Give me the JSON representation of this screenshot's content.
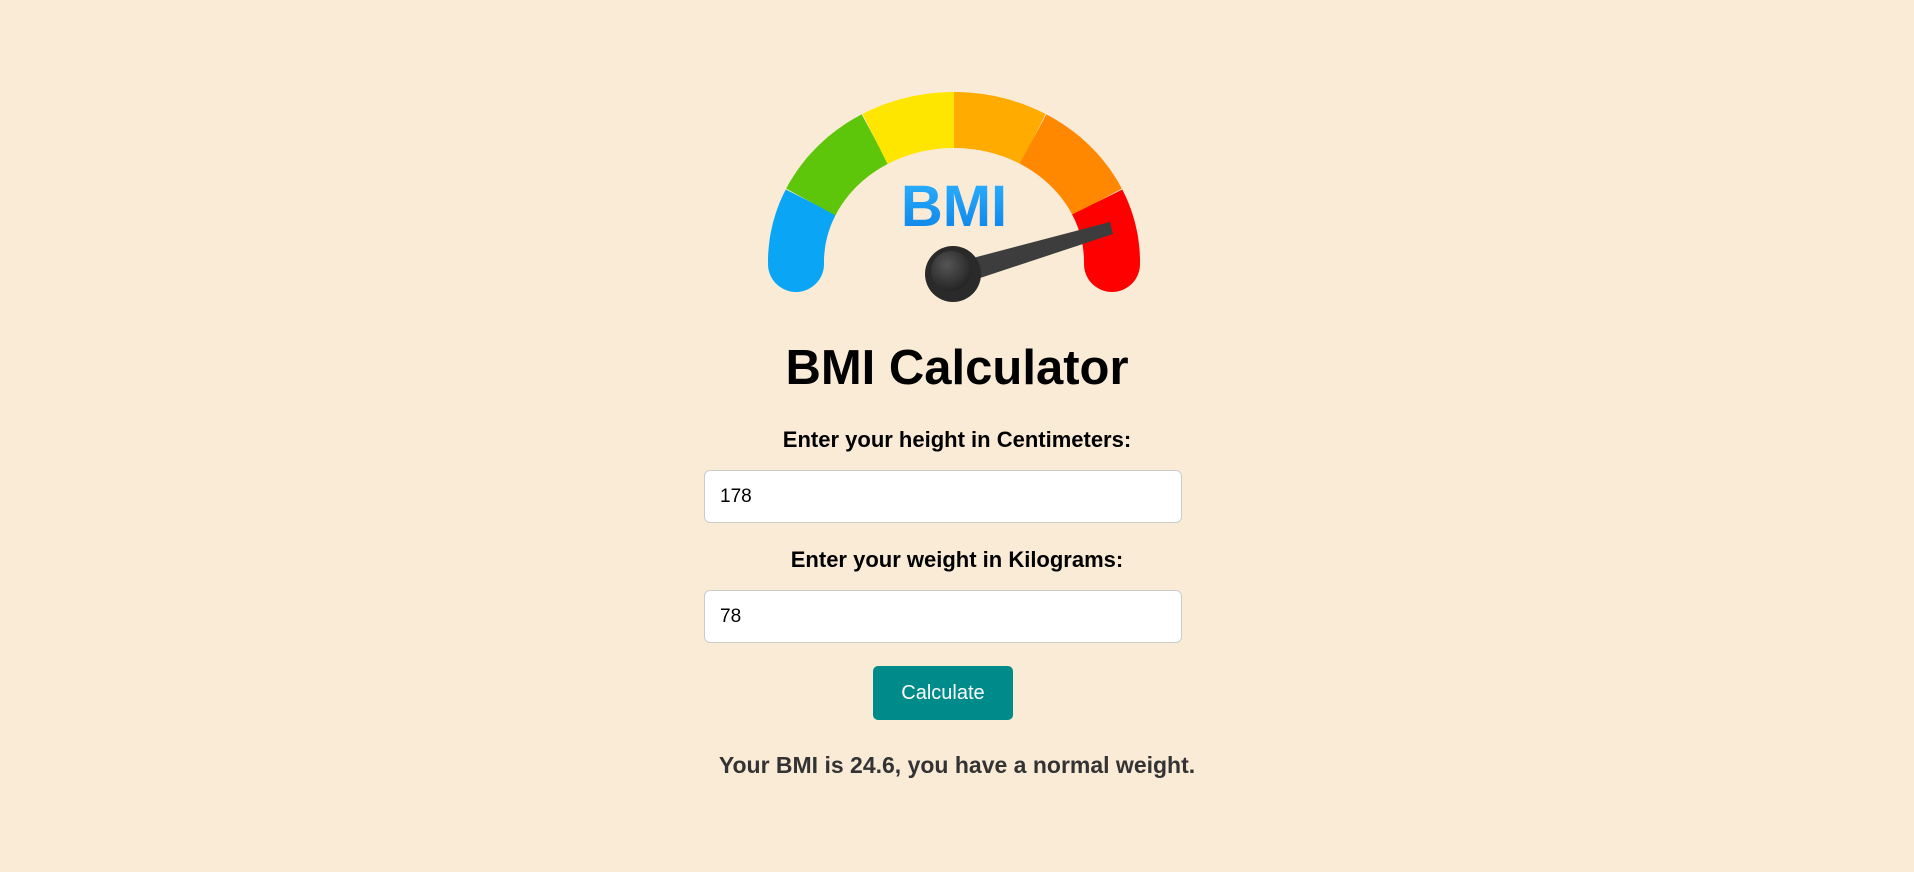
{
  "logo": {
    "text": "BMI",
    "colors": {
      "underweight": "#0aa5f5",
      "normal": "#5ec60a",
      "overweight": "#ffe600",
      "obese1": "#ffab00",
      "obese2": "#ff8800",
      "obese3": "#ff0000",
      "needle": "#3a3a3a",
      "text": "#1e9bf0"
    }
  },
  "title": "BMI Calculator",
  "form": {
    "height_label": "Enter your height in Centimeters:",
    "height_value": "178",
    "weight_label": "Enter your weight in Kilograms:",
    "weight_value": "78",
    "calculate_label": "Calculate"
  },
  "result": "Your BMI is 24.6, you have a normal weight.",
  "theme": {
    "background": "#faebd7",
    "button": "#008b8b"
  }
}
